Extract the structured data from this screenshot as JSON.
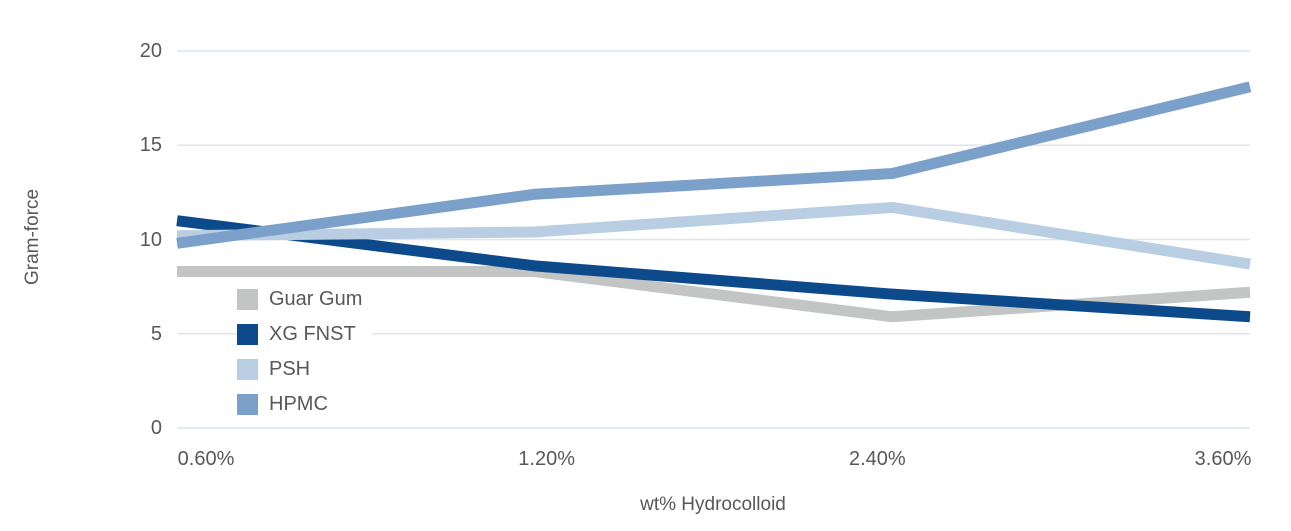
{
  "chart_data": {
    "type": "line",
    "title": "",
    "xlabel": "wt% Hydrocolloid",
    "ylabel": "Gram-force",
    "categories": [
      "0.60%",
      "1.20%",
      "2.40%",
      "3.60%"
    ],
    "y_ticks": [
      0,
      5,
      10,
      15,
      20
    ],
    "ylim": [
      0,
      20
    ],
    "grid": true,
    "legend_position": "inside-bottom-left",
    "series": [
      {
        "name": "Guar Gum",
        "color": "#c3c4c4",
        "values": [
          8.3,
          8.3,
          5.9,
          7.2
        ]
      },
      {
        "name": "XG FNST",
        "color": "#0d4a8c",
        "values": [
          11.0,
          8.6,
          7.1,
          5.9
        ]
      },
      {
        "name": "PSH",
        "color": "#b9cee3",
        "values": [
          10.2,
          10.4,
          11.7,
          8.7
        ]
      },
      {
        "name": "HPMC",
        "color": "#7ba1ca",
        "values": [
          9.8,
          12.4,
          13.5,
          18.1
        ]
      }
    ],
    "colors": {
      "grid": "#dce6ee",
      "text": "#57585a"
    }
  }
}
